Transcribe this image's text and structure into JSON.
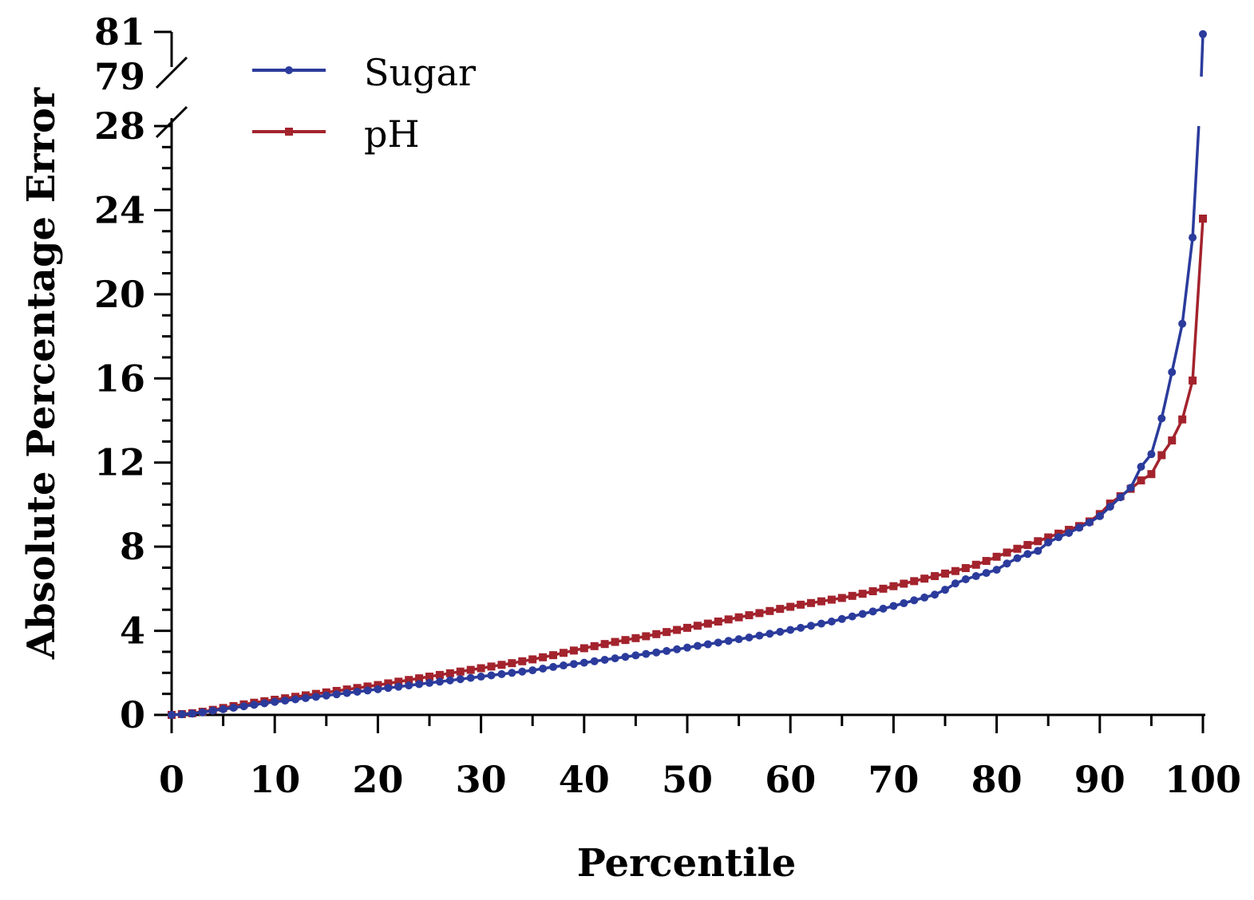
{
  "chart_data": {
    "type": "line",
    "xlabel": "Percentile",
    "ylabel": "Absolute Percentage Error",
    "xlim": [
      0,
      100
    ],
    "ylim_lower": [
      0,
      28
    ],
    "ylim_upper": [
      79,
      81
    ],
    "axis_break": true,
    "grid": false,
    "legend_position": "top-left",
    "x_ticks": [
      "0",
      "10",
      "20",
      "30",
      "40",
      "50",
      "60",
      "70",
      "80",
      "90",
      "100"
    ],
    "y_ticks_lower": [
      "0",
      "4",
      "8",
      "12",
      "16",
      "20",
      "24",
      "28"
    ],
    "y_ticks_upper": [
      "79",
      "81"
    ],
    "series": [
      {
        "name": "Sugar",
        "color": "#2b3b9c",
        "marker": "circle",
        "x": [
          0,
          1,
          2,
          3,
          4,
          5,
          6,
          7,
          8,
          9,
          10,
          11,
          12,
          13,
          14,
          15,
          16,
          17,
          18,
          19,
          20,
          21,
          22,
          23,
          24,
          25,
          26,
          27,
          28,
          29,
          30,
          31,
          32,
          33,
          34,
          35,
          36,
          37,
          38,
          39,
          40,
          41,
          42,
          43,
          44,
          45,
          46,
          47,
          48,
          49,
          50,
          51,
          52,
          53,
          54,
          55,
          56,
          57,
          58,
          59,
          60,
          61,
          62,
          63,
          64,
          65,
          66,
          67,
          68,
          69,
          70,
          71,
          72,
          73,
          74,
          75,
          76,
          77,
          78,
          79,
          80,
          81,
          82,
          83,
          84,
          85,
          86,
          87,
          88,
          89,
          90,
          91,
          92,
          93,
          94,
          95,
          96,
          97,
          98,
          99,
          100
        ],
        "values": [
          0,
          0.03,
          0.06,
          0.12,
          0.2,
          0.27,
          0.34,
          0.41,
          0.48,
          0.55,
          0.62,
          0.68,
          0.74,
          0.8,
          0.86,
          0.92,
          0.98,
          1.04,
          1.1,
          1.16,
          1.22,
          1.28,
          1.34,
          1.4,
          1.46,
          1.52,
          1.58,
          1.64,
          1.7,
          1.76,
          1.82,
          1.88,
          1.94,
          2.0,
          2.06,
          2.12,
          2.2,
          2.28,
          2.35,
          2.42,
          2.48,
          2.55,
          2.62,
          2.69,
          2.76,
          2.83,
          2.9,
          2.97,
          3.04,
          3.12,
          3.2,
          3.28,
          3.36,
          3.44,
          3.52,
          3.6,
          3.68,
          3.77,
          3.86,
          3.95,
          4.04,
          4.14,
          4.24,
          4.34,
          4.44,
          4.56,
          4.68,
          4.8,
          4.92,
          5.05,
          5.18,
          5.31,
          5.45,
          5.58,
          5.72,
          5.95,
          6.25,
          6.45,
          6.6,
          6.75,
          6.9,
          7.2,
          7.45,
          7.65,
          7.8,
          8.2,
          8.45,
          8.65,
          8.9,
          9.15,
          9.45,
          9.9,
          10.35,
          10.8,
          11.8,
          12.4,
          14.1,
          16.3,
          18.6,
          22.7,
          80.9
        ]
      },
      {
        "name": "pH",
        "color": "#a3232d",
        "marker": "square",
        "x": [
          0,
          1,
          2,
          3,
          4,
          5,
          6,
          7,
          8,
          9,
          10,
          11,
          12,
          13,
          14,
          15,
          16,
          17,
          18,
          19,
          20,
          21,
          22,
          23,
          24,
          25,
          26,
          27,
          28,
          29,
          30,
          31,
          32,
          33,
          34,
          35,
          36,
          37,
          38,
          39,
          40,
          41,
          42,
          43,
          44,
          45,
          46,
          47,
          48,
          49,
          50,
          51,
          52,
          53,
          54,
          55,
          56,
          57,
          58,
          59,
          60,
          61,
          62,
          63,
          64,
          65,
          66,
          67,
          68,
          69,
          70,
          71,
          72,
          73,
          74,
          75,
          76,
          77,
          78,
          79,
          80,
          81,
          82,
          83,
          84,
          85,
          86,
          87,
          88,
          89,
          90,
          91,
          92,
          93,
          94,
          95,
          96,
          97,
          98,
          99,
          100
        ],
        "values": [
          0,
          0.04,
          0.08,
          0.15,
          0.24,
          0.33,
          0.42,
          0.5,
          0.58,
          0.65,
          0.72,
          0.79,
          0.86,
          0.93,
          1.0,
          1.07,
          1.14,
          1.21,
          1.28,
          1.35,
          1.42,
          1.5,
          1.58,
          1.66,
          1.74,
          1.82,
          1.9,
          1.98,
          2.06,
          2.14,
          2.22,
          2.3,
          2.38,
          2.46,
          2.55,
          2.64,
          2.74,
          2.84,
          2.95,
          3.06,
          3.17,
          3.27,
          3.37,
          3.47,
          3.56,
          3.65,
          3.74,
          3.84,
          3.94,
          4.04,
          4.14,
          4.24,
          4.34,
          4.44,
          4.54,
          4.64,
          4.74,
          4.84,
          4.94,
          5.04,
          5.14,
          5.24,
          5.32,
          5.4,
          5.48,
          5.56,
          5.66,
          5.76,
          5.88,
          6.0,
          6.12,
          6.24,
          6.36,
          6.48,
          6.6,
          6.72,
          6.84,
          6.98,
          7.14,
          7.32,
          7.52,
          7.72,
          7.9,
          8.08,
          8.26,
          8.44,
          8.62,
          8.8,
          8.98,
          9.2,
          9.55,
          10.05,
          10.4,
          10.75,
          11.15,
          11.45,
          12.35,
          13.05,
          14.05,
          15.9,
          23.6
        ]
      }
    ]
  }
}
